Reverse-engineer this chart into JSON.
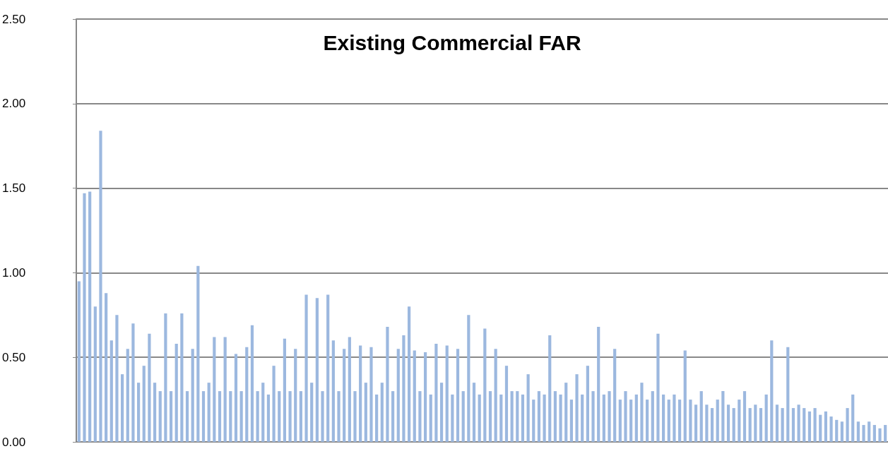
{
  "chart_data": {
    "type": "bar",
    "title": "Existing Commercial FAR",
    "color": "#9cb8df",
    "categories": [
      null,
      null,
      null,
      null,
      null,
      null,
      null,
      null,
      null,
      null,
      null,
      null,
      null,
      null,
      null,
      null,
      null,
      null,
      null,
      null,
      null,
      null,
      null,
      null,
      null,
      null,
      null,
      null,
      null,
      null,
      null,
      null,
      null,
      null,
      null,
      null,
      null,
      null,
      null,
      null,
      null,
      null,
      null,
      null,
      null,
      null,
      null,
      null,
      null,
      null,
      null,
      null,
      null,
      null,
      null,
      null,
      null,
      null,
      null,
      null,
      null,
      null,
      null,
      null,
      null,
      null,
      null,
      null,
      null,
      null,
      null,
      null,
      null,
      null,
      null,
      null,
      null,
      null,
      null,
      null,
      null,
      null,
      null,
      null,
      null,
      null,
      null,
      null,
      null,
      null,
      null,
      null,
      null,
      null,
      null,
      null,
      null,
      null,
      null,
      null,
      null,
      null,
      null,
      null,
      null,
      null,
      null,
      null,
      null,
      null,
      null,
      null,
      null,
      null,
      null,
      null,
      null,
      null,
      null,
      null,
      null,
      null,
      null,
      null,
      null,
      null,
      null,
      null,
      null,
      null,
      null,
      null,
      null,
      null,
      null,
      null,
      null,
      null,
      null,
      null,
      null,
      null,
      null,
      null,
      null,
      null,
      null,
      null,
      null,
      null
    ],
    "values": [
      0.95,
      1.47,
      1.48,
      0.8,
      1.84,
      0.88,
      0.6,
      0.75,
      0.4,
      0.55,
      0.7,
      0.35,
      0.45,
      0.64,
      0.35,
      0.3,
      0.76,
      0.3,
      0.58,
      0.76,
      0.3,
      0.55,
      1.04,
      0.3,
      0.35,
      0.62,
      0.3,
      0.62,
      0.3,
      0.52,
      0.3,
      0.56,
      0.69,
      0.3,
      0.35,
      0.28,
      0.45,
      0.3,
      0.61,
      0.3,
      0.55,
      0.3,
      0.87,
      0.35,
      0.85,
      0.3,
      0.87,
      0.6,
      0.3,
      0.55,
      0.62,
      0.3,
      0.57,
      0.35,
      0.56,
      0.28,
      0.35,
      0.68,
      0.3,
      0.55,
      0.63,
      0.8,
      0.54,
      0.3,
      0.53,
      0.28,
      0.58,
      0.35,
      0.57,
      0.28,
      0.55,
      0.3,
      0.75,
      0.35,
      0.28,
      0.67,
      0.3,
      0.55,
      0.28,
      0.45,
      0.3,
      0.3,
      0.28,
      0.4,
      0.25,
      0.3,
      0.28,
      0.63,
      0.3,
      0.28,
      0.35,
      0.25,
      0.4,
      0.28,
      0.45,
      0.3,
      0.68,
      0.28,
      0.3,
      0.55,
      0.25,
      0.3,
      0.25,
      0.28,
      0.35,
      0.25,
      0.3,
      0.64,
      0.28,
      0.25,
      0.28,
      0.25,
      0.54,
      0.25,
      0.22,
      0.3,
      0.22,
      0.2,
      0.25,
      0.3,
      0.22,
      0.2,
      0.25,
      0.3,
      0.2,
      0.22,
      0.2,
      0.28,
      0.6,
      0.22,
      0.2,
      0.56,
      0.2,
      0.22,
      0.2,
      0.18,
      0.2,
      0.16,
      0.18,
      0.15,
      0.13,
      0.12,
      0.2,
      0.28,
      0.12,
      0.1,
      0.12,
      0.1,
      0.08,
      0.1
    ],
    "ylim": [
      0,
      2.5
    ],
    "yticks": [
      {
        "value": 0,
        "label": "0.00"
      },
      {
        "value": 0.5,
        "label": "0.50"
      },
      {
        "value": 1,
        "label": "1.00"
      },
      {
        "value": 1.5,
        "label": "1.50"
      },
      {
        "value": 2,
        "label": "2.00"
      },
      {
        "value": 2.5,
        "label": "2.50"
      }
    ],
    "grid": "y",
    "tick_labels": "y"
  }
}
